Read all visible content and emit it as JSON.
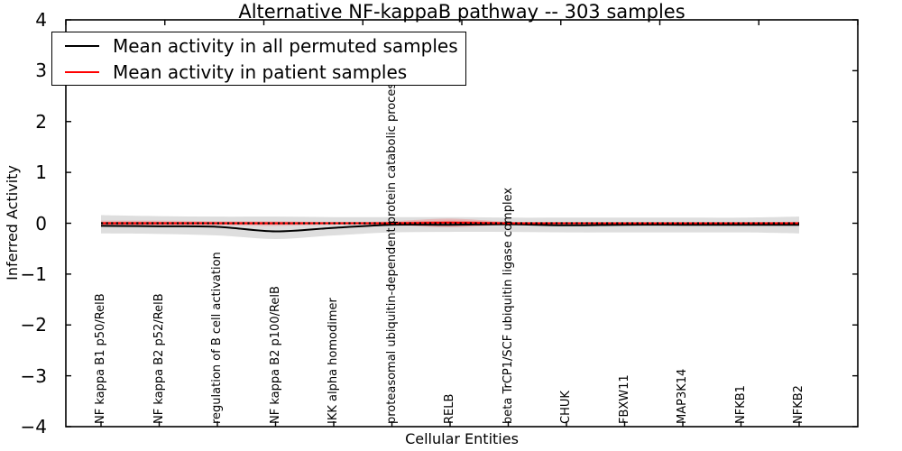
{
  "chart_data": {
    "type": "line",
    "title": "Alternative NF-kappaB pathway -- 303 samples",
    "xlabel": "Cellular Entities",
    "ylabel": "Inferred Activity",
    "ylim": [
      -4,
      4
    ],
    "yticks": [
      4,
      3,
      2,
      1,
      0,
      -1,
      -2,
      -3,
      -4
    ],
    "grid": false,
    "legend_position": "upper left",
    "top_tick_count": 9,
    "zero_line": {
      "y": 0,
      "style": "dotted",
      "color": "#000000"
    },
    "categories": [
      "NF kappa B1 p50/RelB",
      "NF kappa B2 p52/RelB",
      "regulation of B cell activation",
      "NF kappa B2 p100/RelB",
      "IKK alpha homodimer",
      "proteasomal ubiquitin-dependent protein catabolic process",
      "RELB",
      "beta TrCP1/SCF ubiquitin ligase complex",
      "CHUK",
      "FBXW11",
      "MAP3K14",
      "NFKB1",
      "NFKB2"
    ],
    "series": [
      {
        "name": "Mean activity in all permuted samples",
        "color": "#000000",
        "band_color": "#000000",
        "band_opacity": 0.13,
        "values": [
          -0.05,
          -0.06,
          -0.07,
          -0.16,
          -0.09,
          -0.03,
          -0.03,
          -0.02,
          -0.04,
          -0.03,
          -0.03,
          -0.03,
          -0.03
        ],
        "band_upper": [
          0.16,
          0.14,
          0.13,
          0.13,
          0.12,
          0.12,
          0.12,
          0.11,
          0.11,
          0.11,
          0.11,
          0.11,
          0.13
        ],
        "band_lower": [
          -0.2,
          -0.21,
          -0.24,
          -0.31,
          -0.24,
          -0.18,
          -0.17,
          -0.17,
          -0.18,
          -0.18,
          -0.18,
          -0.18,
          -0.2
        ]
      },
      {
        "name": "Mean activity in patient samples",
        "color": "#ff0000",
        "band_color": "#ff0000",
        "band_opacity": 0.18,
        "values": [
          0.0,
          0.0,
          0.0,
          0.0,
          0.0,
          0.0,
          0.01,
          0.0,
          0.0,
          0.0,
          0.0,
          0.0,
          0.0
        ],
        "band_upper": [
          0.05,
          0.05,
          0.04,
          0.04,
          0.03,
          0.04,
          0.09,
          0.03,
          0.02,
          0.02,
          0.02,
          0.02,
          0.03
        ],
        "band_lower": [
          -0.05,
          -0.05,
          -0.04,
          -0.05,
          -0.03,
          -0.04,
          -0.08,
          -0.03,
          -0.02,
          -0.02,
          -0.02,
          -0.02,
          -0.03
        ]
      }
    ]
  }
}
